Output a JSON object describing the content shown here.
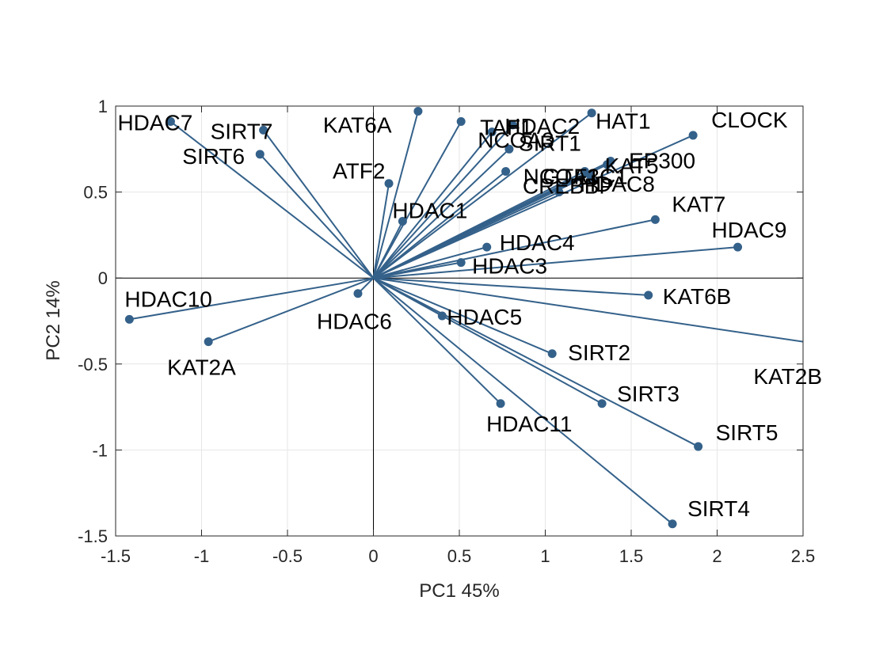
{
  "chart_data": {
    "type": "scatter",
    "subtype": "biplot",
    "title": "",
    "xlabel": "PC1 45%",
    "ylabel": "PC2 14%",
    "xlim": [
      -1.5,
      2.5
    ],
    "ylim": [
      -1.5,
      1
    ],
    "xticks": [
      -1.5,
      -1,
      -0.5,
      0,
      0.5,
      1,
      1.5,
      2,
      2.5
    ],
    "yticks": [
      -1.5,
      -1,
      -0.5,
      0,
      0.5,
      1
    ],
    "xtick_labels": [
      "-1.5",
      "-1",
      "-0.5",
      "0",
      "0.5",
      "1",
      "1.5",
      "2",
      "2.5"
    ],
    "ytick_labels": [
      "-1.5",
      "-1",
      "-0.5",
      "0",
      "0.5",
      "1"
    ],
    "grid": true,
    "color": "#34618a",
    "points": [
      {
        "label": "HDAC7",
        "x": -1.18,
        "y": 0.91
      },
      {
        "label": "SIRT7",
        "x": -0.64,
        "y": 0.86
      },
      {
        "label": "SIRT6",
        "x": -0.66,
        "y": 0.72
      },
      {
        "label": "KAT6A",
        "x": 0.26,
        "y": 0.97
      },
      {
        "label": "TAF1",
        "x": 0.51,
        "y": 0.91
      },
      {
        "label": "NCOA3",
        "x": 0.69,
        "y": 0.85
      },
      {
        "label": "HDAC2",
        "x": 0.81,
        "y": 0.89
      },
      {
        "label": "HAT1",
        "x": 1.27,
        "y": 0.96
      },
      {
        "label": "SIRT1",
        "x": 0.79,
        "y": 0.75
      },
      {
        "label": "CLOCK",
        "x": 1.86,
        "y": 0.83
      },
      {
        "label": "EP300",
        "x": 1.38,
        "y": 0.68
      },
      {
        "label": "NCOA1",
        "x": 0.77,
        "y": 0.62
      },
      {
        "label": "KAT5",
        "x": 1.36,
        "y": 0.66
      },
      {
        "label": "GTF3C1",
        "x": 1.23,
        "y": 0.62
      },
      {
        "label": "HDAC8",
        "x": 1.26,
        "y": 0.6
      },
      {
        "label": "CREBBP",
        "x": 1.08,
        "y": 0.5
      },
      {
        "label": "ATF2",
        "x": 0.09,
        "y": 0.55
      },
      {
        "label": "HDAC1",
        "x": 0.17,
        "y": 0.33
      },
      {
        "label": "HDAC4",
        "x": 0.66,
        "y": 0.18
      },
      {
        "label": "HDAC3",
        "x": 0.51,
        "y": 0.09
      },
      {
        "label": "KAT7",
        "x": 1.64,
        "y": 0.34
      },
      {
        "label": "HDAC9",
        "x": 2.12,
        "y": 0.18
      },
      {
        "label": "KAT6B",
        "x": 1.6,
        "y": -0.1
      },
      {
        "label": "KAT2B",
        "x": 2.7,
        "y": -0.4
      },
      {
        "label": "HDAC10",
        "x": -1.42,
        "y": -0.24
      },
      {
        "label": "HDAC6",
        "x": -0.09,
        "y": -0.09
      },
      {
        "label": "KAT2A",
        "x": -0.96,
        "y": -0.37
      },
      {
        "label": "HDAC5",
        "x": 0.4,
        "y": -0.22
      },
      {
        "label": "SIRT2",
        "x": 1.04,
        "y": -0.44
      },
      {
        "label": "SIRT3",
        "x": 1.33,
        "y": -0.73
      },
      {
        "label": "HDAC11",
        "x": 0.74,
        "y": -0.73
      },
      {
        "label": "SIRT5",
        "x": 1.89,
        "y": -0.98
      },
      {
        "label": "SIRT4",
        "x": 1.74,
        "y": -1.43
      }
    ]
  }
}
